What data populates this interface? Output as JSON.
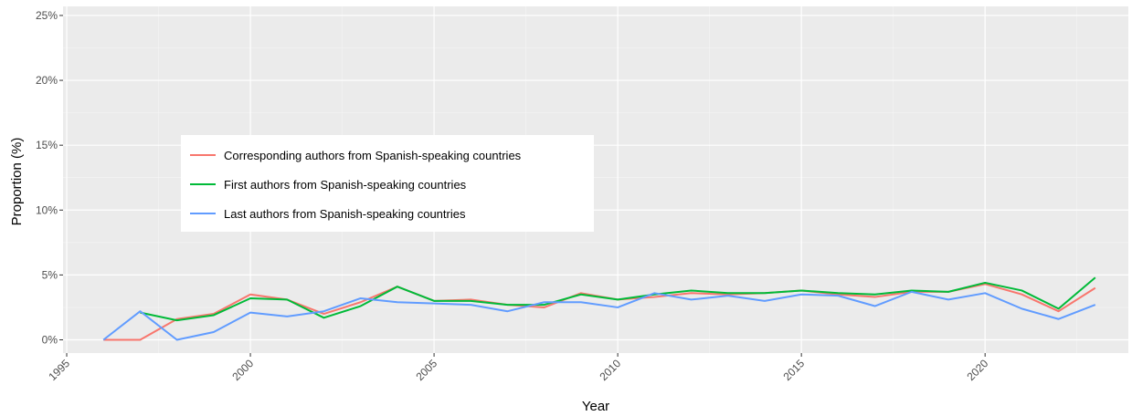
{
  "chart_data": {
    "type": "line",
    "xlabel": "Year",
    "ylabel": "Proportion (%)",
    "xlim": [
      1994.9,
      2023.9
    ],
    "ylim": [
      -1.02,
      25.7
    ],
    "x_ticks": [
      1995,
      2000,
      2005,
      2010,
      2015,
      2020
    ],
    "y_ticks": [
      {
        "value": 0,
        "label": "0%"
      },
      {
        "value": 5,
        "label": "5%"
      },
      {
        "value": 10,
        "label": "10%"
      },
      {
        "value": 15,
        "label": "15%"
      },
      {
        "value": 20,
        "label": "20%"
      },
      {
        "value": 25,
        "label": "25%"
      }
    ],
    "grid": true,
    "legend_position": "inside-left",
    "background_color": "#ebebeb",
    "grid_color": "#ffffff",
    "x": [
      1996,
      1997,
      1998,
      1999,
      2000,
      2001,
      2002,
      2003,
      2004,
      2005,
      2006,
      2007,
      2008,
      2009,
      2010,
      2011,
      2012,
      2013,
      2014,
      2015,
      2016,
      2017,
      2018,
      2019,
      2020,
      2021,
      2022,
      2023
    ],
    "series": [
      {
        "name": "Corresponding authors from Spanish-speaking countries",
        "color": "#f8766d",
        "values": [
          0.0,
          0.0,
          1.6,
          2.0,
          3.5,
          3.1,
          2.0,
          2.9,
          4.1,
          3.0,
          3.1,
          2.7,
          2.5,
          3.6,
          3.1,
          3.3,
          3.6,
          3.5,
          3.6,
          3.8,
          3.5,
          3.3,
          3.7,
          3.7,
          4.3,
          3.5,
          2.2,
          4.0
        ]
      },
      {
        "name": "First authors from Spanish-speaking countries",
        "color": "#00ba38",
        "values": [
          null,
          2.1,
          1.5,
          1.9,
          3.2,
          3.1,
          1.7,
          2.6,
          4.1,
          3.0,
          3.0,
          2.7,
          2.7,
          3.5,
          3.1,
          3.5,
          3.8,
          3.6,
          3.6,
          3.8,
          3.6,
          3.5,
          3.8,
          3.7,
          4.4,
          3.8,
          2.4,
          4.8
        ]
      },
      {
        "name": "Last authors from Spanish-speaking countries",
        "color": "#619cff",
        "values": [
          0.0,
          2.2,
          0.0,
          0.6,
          2.1,
          1.8,
          2.2,
          3.2,
          2.9,
          2.8,
          2.7,
          2.2,
          2.9,
          2.9,
          2.5,
          3.6,
          3.1,
          3.4,
          3.0,
          3.5,
          3.4,
          2.6,
          3.7,
          3.1,
          3.6,
          2.4,
          1.6,
          2.7
        ]
      }
    ]
  }
}
